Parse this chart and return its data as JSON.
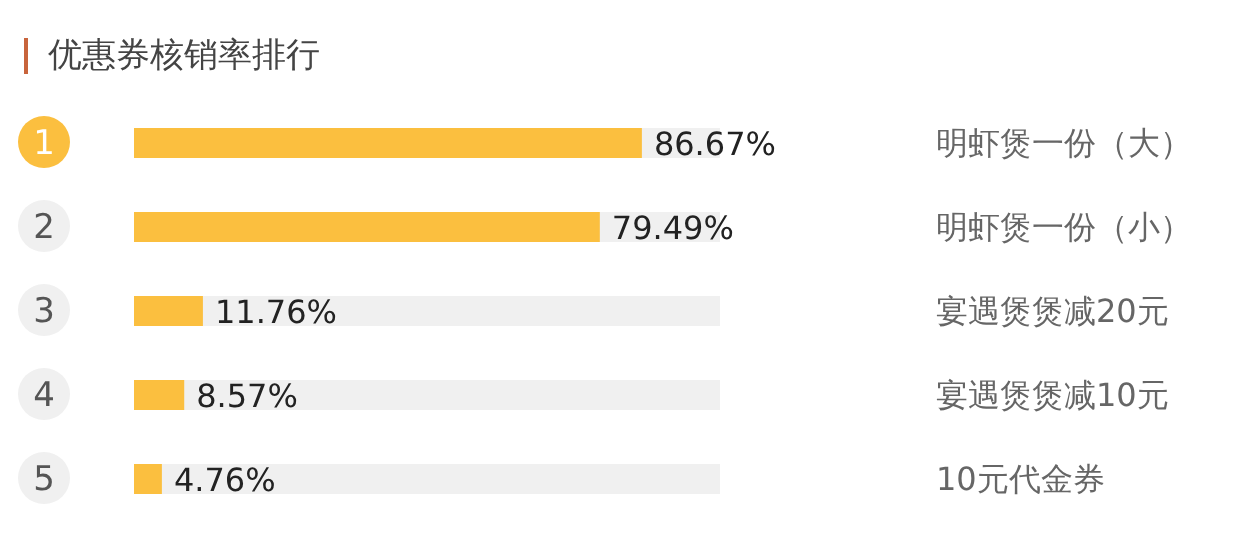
{
  "chart_data": {
    "type": "bar",
    "orientation": "horizontal",
    "title": "优惠券核销率排行",
    "categories": [
      "明虾煲一份（大）",
      "明虾煲一份（小）",
      "宴遇煲煲减20元",
      "宴遇煲煲减10元",
      "10元代金券"
    ],
    "values": [
      86.67,
      79.49,
      11.76,
      8.57,
      4.76
    ],
    "value_labels": [
      "86.67%",
      "79.49%",
      "11.76%",
      "8.57%",
      "4.76%"
    ],
    "annotations": [
      "1",
      "2",
      "3",
      "4",
      "5"
    ],
    "color": "#fbbf3f",
    "xlim": [
      0,
      100
    ],
    "grid": false,
    "legend": false
  }
}
